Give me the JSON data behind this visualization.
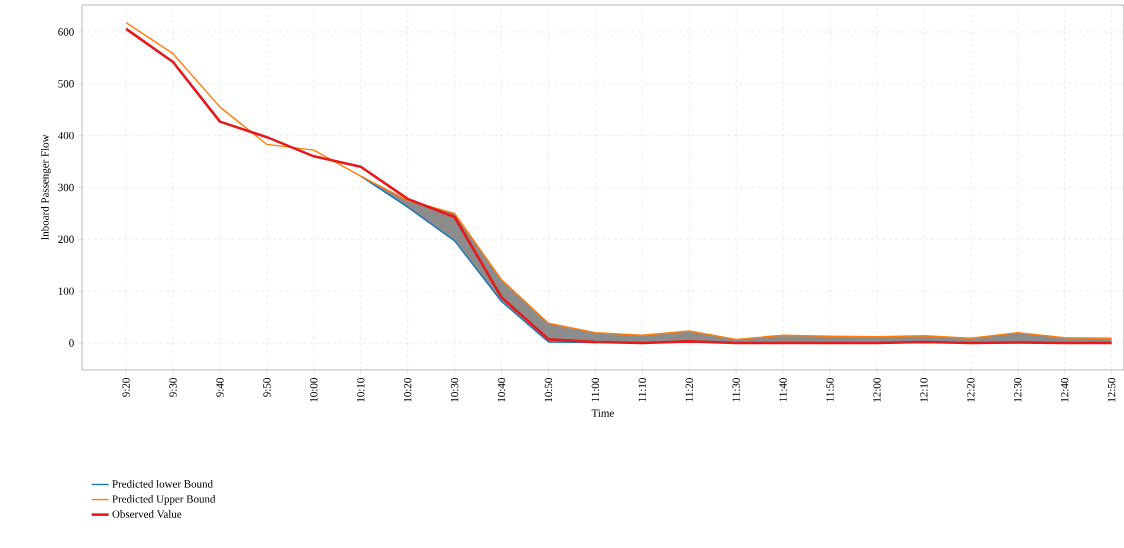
{
  "chart_data": {
    "type": "line",
    "categories": [
      "9:20",
      "9:30",
      "9:40",
      "9:50",
      "10:00",
      "10:10",
      "10:20",
      "10:30",
      "10:40",
      "10:50",
      "11:00",
      "11:10",
      "11:20",
      "11:30",
      "11:40",
      "11:50",
      "12:00",
      "12:10",
      "12:20",
      "12:30",
      "12:40",
      "12:50"
    ],
    "series": [
      {
        "name": "Predicted lower Bound",
        "color": "#1f77b4",
        "values": [
          null,
          null,
          null,
          null,
          null,
          322,
          262,
          197,
          80,
          2,
          1,
          null,
          null,
          null,
          null,
          null,
          null,
          null,
          null,
          null,
          null,
          null
        ]
      },
      {
        "name": "Predicted Upper Bound",
        "color": "#ff7f0e",
        "values": [
          618,
          558,
          455,
          383,
          372,
          322,
          275,
          250,
          122,
          38,
          20,
          15,
          23,
          7,
          15,
          13,
          12,
          14,
          9,
          20,
          10,
          9
        ]
      },
      {
        "name": "Observed Value",
        "color": "#e41a1c",
        "values": [
          606,
          542,
          427,
          397,
          360,
          340,
          278,
          243,
          88,
          7,
          2,
          0,
          3,
          0,
          0,
          0,
          0,
          2,
          0,
          1,
          0,
          0
        ],
        "lower": [
          618,
          558,
          455,
          383,
          372,
          322,
          262,
          197,
          80,
          2,
          1,
          0,
          1,
          0,
          0,
          0,
          0,
          1,
          0,
          0,
          0,
          0
        ],
        "upper": [
          618,
          558,
          455,
          383,
          372,
          322,
          275,
          250,
          122,
          38,
          20,
          15,
          23,
          7,
          15,
          13,
          12,
          14,
          9,
          20,
          10,
          9
        ]
      }
    ],
    "xlabel": "Time",
    "ylabel": "Inboard Passenger Flow",
    "ylim": [
      -52,
      652
    ],
    "yticks": [
      0,
      100,
      200,
      300,
      400,
      500,
      600
    ],
    "grid": true,
    "legend": "bottom"
  }
}
